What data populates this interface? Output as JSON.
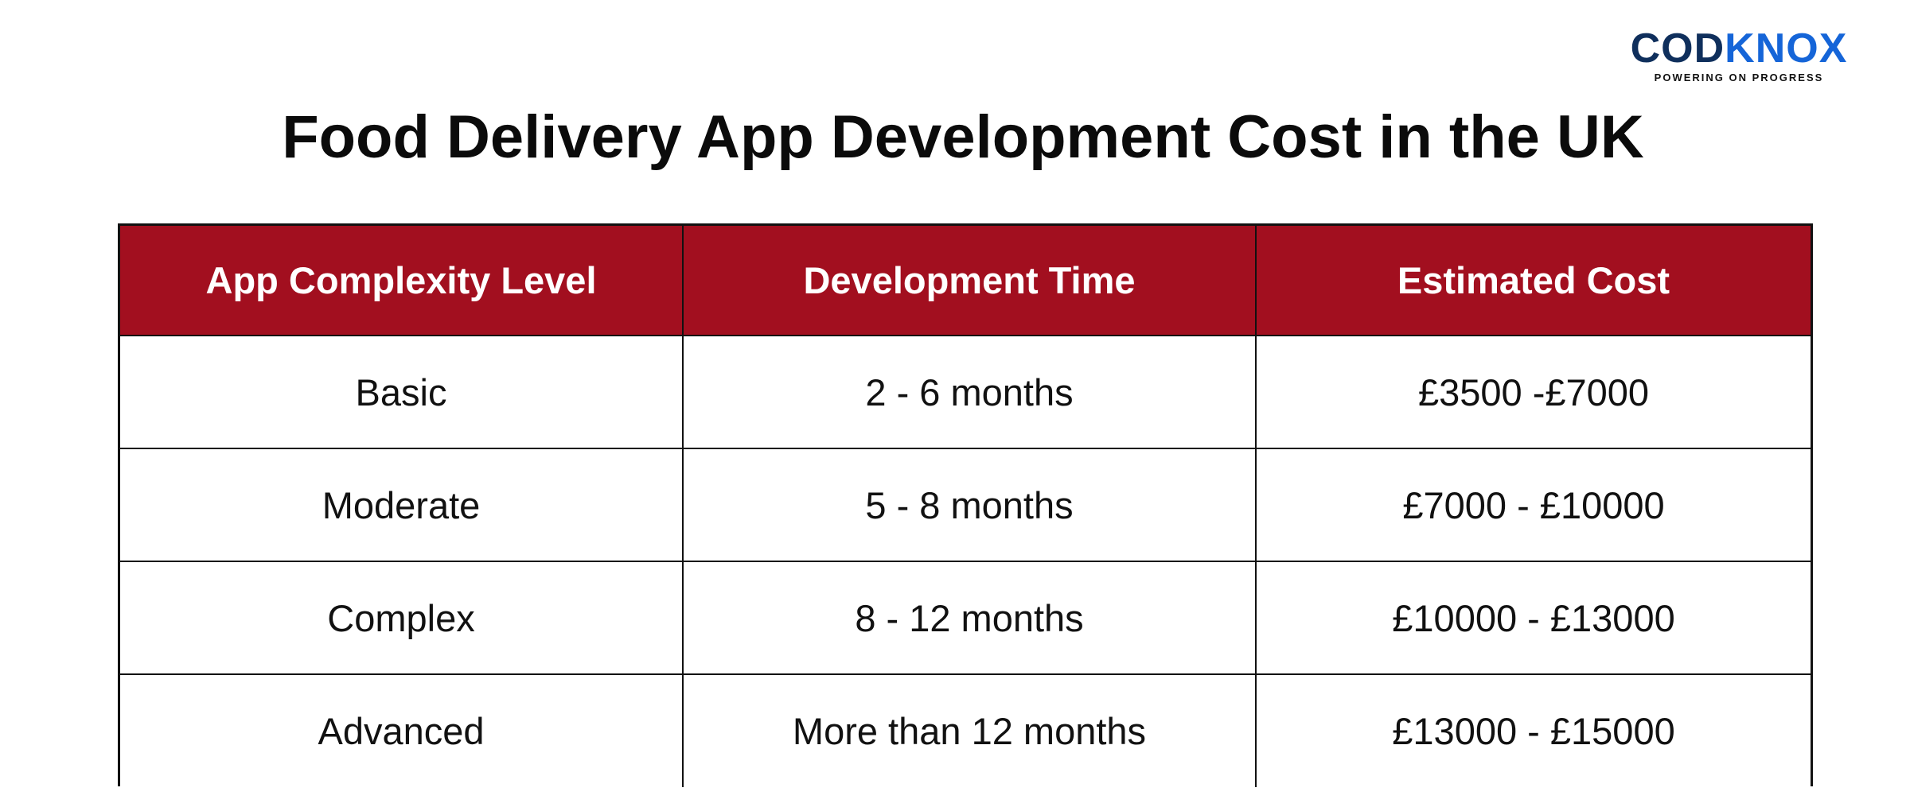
{
  "logo": {
    "word_part_a": "COD",
    "word_part_b": "KNOX",
    "tagline": "POWERING ON PROGRESS",
    "colors": {
      "dark": "#0f2f5c",
      "accent": "#1565d8"
    }
  },
  "title": "Food Delivery App Development Cost in the UK",
  "table": {
    "header_color": "#a20f1f",
    "columns": [
      "App Complexity Level",
      "Development Time",
      "Estimated Cost"
    ],
    "rows": [
      {
        "level": "Basic",
        "time": "2 - 6 months",
        "cost": "£3500 -£7000"
      },
      {
        "level": "Moderate",
        "time": "5 - 8 months",
        "cost": "£7000 - £10000"
      },
      {
        "level": "Complex",
        "time": "8 - 12 months",
        "cost": "£10000 - £13000"
      },
      {
        "level": "Advanced",
        "time": "More than 12 months",
        "cost": "£13000 - £15000"
      }
    ]
  }
}
